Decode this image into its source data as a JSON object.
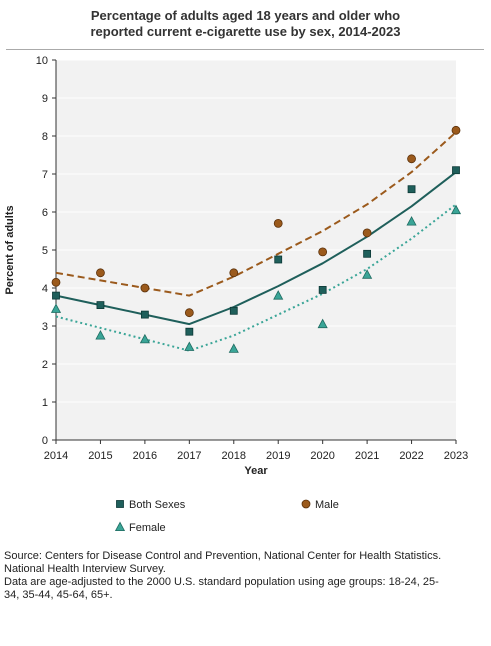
{
  "title_lines": [
    "Percentage of adults aged 18 years and older who",
    "reported current e-cigarette use by sex, 2014-2023"
  ],
  "source_lines": [
    "Source: Centers for Disease Control and Prevention, National Center for Health Statistics.",
    "National Health Interview Survey.",
    "Data are age-adjusted to the 2000 U.S. standard population using age groups: 18-24, 25-",
    "34, 35-44, 45-64, 65+."
  ],
  "chart_data": {
    "type": "scatter",
    "xlabel": "Year",
    "ylabel": "Percent of adults",
    "x": [
      2014,
      2015,
      2016,
      2017,
      2018,
      2019,
      2020,
      2021,
      2022,
      2023
    ],
    "xlim": [
      2014,
      2023
    ],
    "ylim": [
      0,
      10
    ],
    "yticks": [
      0,
      1,
      2,
      3,
      4,
      5,
      6,
      7,
      8,
      9,
      10
    ],
    "grid": "horizontal",
    "legend": "bottom",
    "series": [
      {
        "name": "Both Sexes",
        "marker": "square",
        "color": "#1f5f5b",
        "line_style": "solid",
        "values": [
          3.8,
          3.55,
          3.3,
          2.85,
          3.4,
          4.75,
          3.95,
          4.9,
          6.6,
          7.1
        ],
        "trend": [
          3.8,
          3.55,
          3.3,
          3.05,
          3.5,
          4.05,
          4.65,
          5.35,
          6.15,
          7.05
        ]
      },
      {
        "name": "Male",
        "marker": "circle",
        "color": "#9b5a1c",
        "line_style": "dashed",
        "values": [
          4.15,
          4.4,
          4.0,
          3.35,
          4.4,
          5.7,
          4.95,
          5.45,
          7.4,
          8.15
        ],
        "trend": [
          4.4,
          4.2,
          4.0,
          3.8,
          4.3,
          4.9,
          5.5,
          6.2,
          7.05,
          8.1
        ]
      },
      {
        "name": "Female",
        "marker": "triangle",
        "color": "#3aa597",
        "line_style": "dotted",
        "values": [
          3.45,
          2.75,
          2.65,
          2.45,
          2.4,
          3.8,
          3.05,
          4.35,
          5.75,
          6.05
        ],
        "trend": [
          3.25,
          2.95,
          2.65,
          2.35,
          2.75,
          3.3,
          3.85,
          4.5,
          5.3,
          6.2
        ]
      }
    ]
  }
}
